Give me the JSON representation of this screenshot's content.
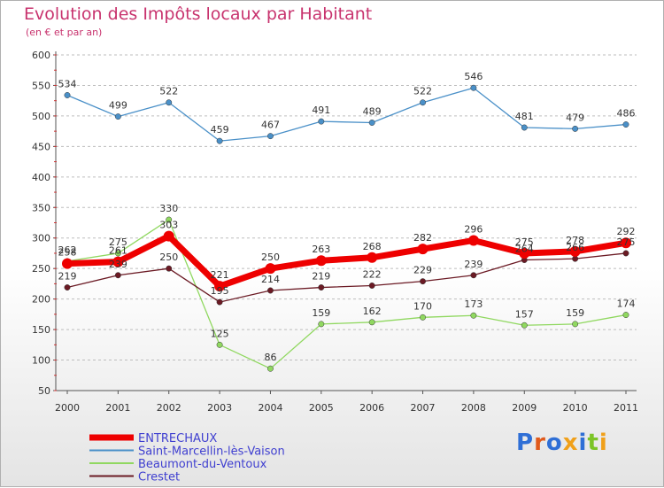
{
  "title": "Evolution des Impôts locaux par Habitant",
  "subtitle": "(en € et par an)",
  "logo": "Proxiti",
  "colors": {
    "title": "#c8336e",
    "grid": "#bdbdbd",
    "logo_letters": [
      "#2f6fd6",
      "#e05a1c",
      "#2f6fd6",
      "#f0a01a",
      "#2f6fd6",
      "#7cc427",
      "#f0a01a"
    ]
  },
  "chart_data": {
    "type": "line",
    "title": "Evolution des Impôts locaux par Habitant",
    "subtitle": "(en € et par an)",
    "xlabel": "",
    "ylabel": "",
    "categories": [
      "2000",
      "2001",
      "2002",
      "2003",
      "2004",
      "2005",
      "2006",
      "2007",
      "2008",
      "2009",
      "2010",
      "2011"
    ],
    "ylim": [
      50,
      600
    ],
    "yticks": [
      "50",
      "100",
      "150",
      "200",
      "250",
      "300",
      "350",
      "400",
      "450",
      "500",
      "550",
      "600"
    ],
    "grid": "dashed horizontal",
    "legend_position": "bottom-left",
    "series": [
      {
        "name": "ENTRECHAUX",
        "color": "#ee0000",
        "values": [
          258,
          261,
          303,
          221,
          250,
          263,
          268,
          282,
          296,
          275,
          278,
          292
        ],
        "labels": [
          "258",
          "261",
          "303",
          "221",
          "250",
          "263",
          "268",
          "282",
          "296",
          "275",
          "278",
          "292"
        ]
      },
      {
        "name": "Saint-Marcellin-lès-Vaison",
        "color": "#4a90c8",
        "values": [
          534,
          499,
          522,
          459,
          467,
          491,
          489,
          522,
          546,
          481,
          479,
          486
        ],
        "labels": [
          "534",
          "499",
          "522",
          "459",
          "467",
          "491",
          "489",
          "522",
          "546",
          "481",
          "479",
          "486"
        ]
      },
      {
        "name": "Beaumont-du-Ventoux",
        "color": "#90d860",
        "values": [
          262,
          275,
          330,
          125,
          86,
          159,
          162,
          170,
          173,
          157,
          159,
          174
        ],
        "labels": [
          "262",
          "275",
          "330",
          "125",
          "86",
          "159",
          "162",
          "170",
          "173",
          "157",
          "159",
          "174"
        ]
      },
      {
        "name": "Crestet",
        "color": "#6b1a24",
        "values": [
          219,
          239,
          250,
          195,
          214,
          219,
          222,
          229,
          239,
          264,
          266,
          275
        ],
        "labels": [
          "219",
          "239",
          "250",
          "195",
          "214",
          "219",
          "222",
          "229",
          "239",
          "264",
          "266",
          "275"
        ]
      }
    ]
  }
}
